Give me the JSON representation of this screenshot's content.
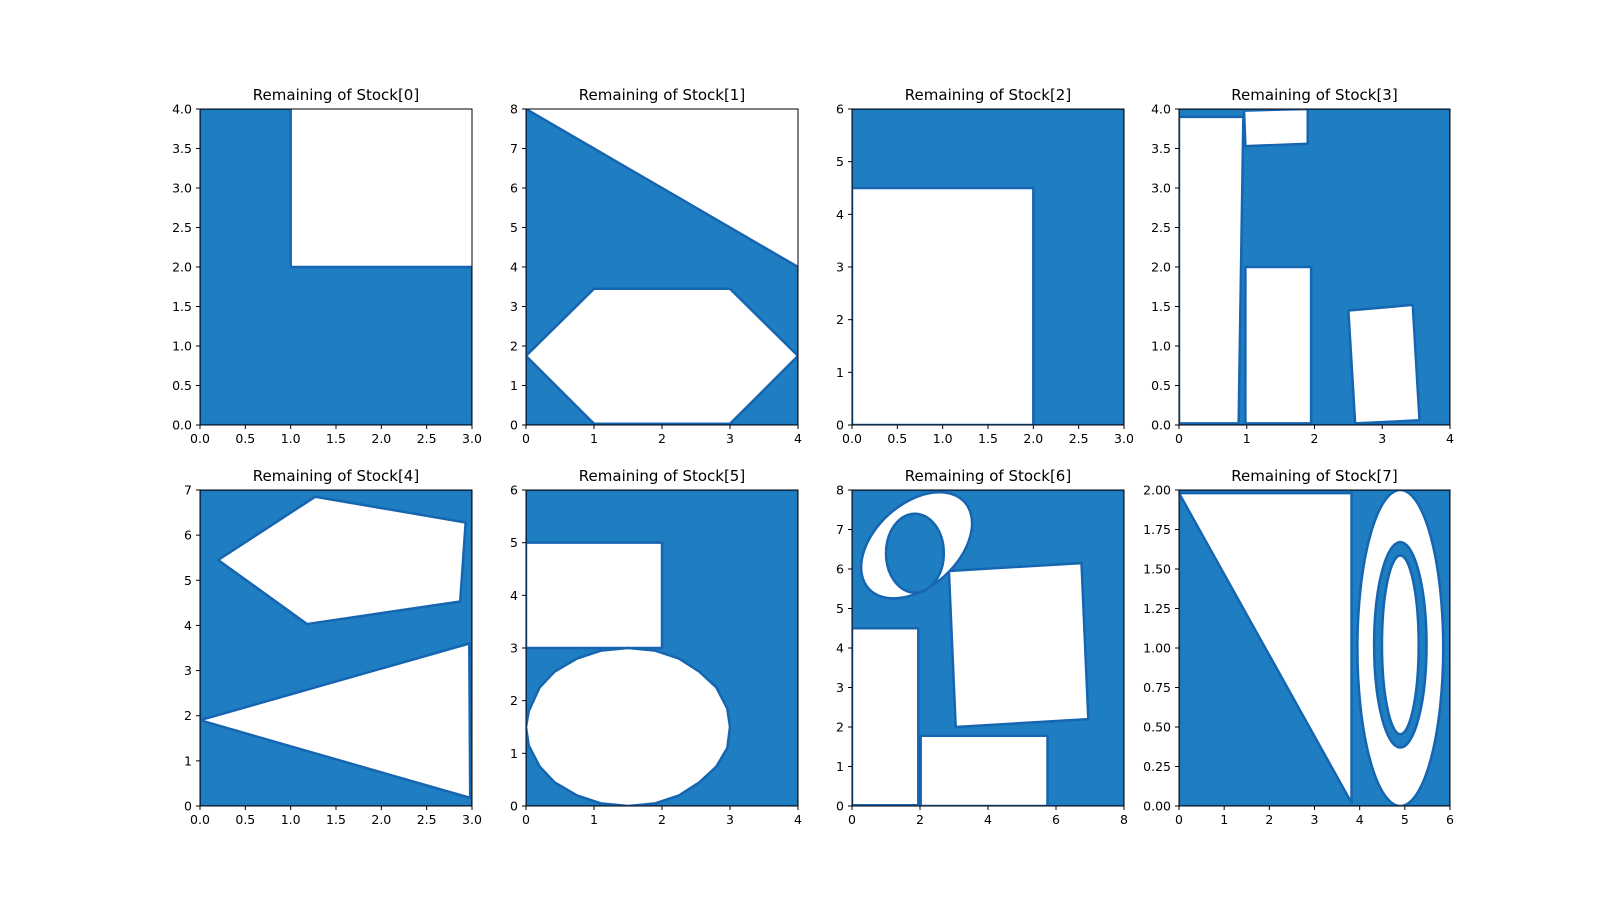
{
  "chart_data": [
    {
      "type": "area",
      "title": "Remaining of Stock[0]",
      "xlim": [
        0,
        3
      ],
      "ylim": [
        0,
        4
      ],
      "xticks": [
        "0.0",
        "0.5",
        "1.0",
        "1.5",
        "2.0",
        "2.5",
        "3.0"
      ],
      "yticks": [
        "0.0",
        "0.5",
        "1.0",
        "1.5",
        "2.0",
        "2.5",
        "3.0",
        "3.5",
        "4.0"
      ],
      "fill_color": "#1f7ec2",
      "remaining_polygons": [
        [
          [
            0,
            0
          ],
          [
            3,
            0
          ],
          [
            3,
            2
          ],
          [
            1,
            2
          ],
          [
            1,
            4
          ],
          [
            0,
            4
          ]
        ]
      ],
      "hole_polygons": []
    },
    {
      "type": "area",
      "title": "Remaining of Stock[1]",
      "xlim": [
        0,
        4
      ],
      "ylim": [
        0,
        8
      ],
      "xticks": [
        "0",
        "1",
        "2",
        "3",
        "4"
      ],
      "yticks": [
        "0",
        "1",
        "2",
        "3",
        "4",
        "5",
        "6",
        "7",
        "8"
      ],
      "fill_color": "#1f7ec2",
      "remaining_polygons": [
        [
          [
            0,
            0
          ],
          [
            4,
            0
          ],
          [
            4,
            4
          ],
          [
            0,
            8
          ]
        ]
      ],
      "hole_polygons": [
        [
          [
            0,
            1.75
          ],
          [
            1,
            3.45
          ],
          [
            3,
            3.45
          ],
          [
            4,
            1.75
          ],
          [
            3,
            0.03
          ],
          [
            1,
            0.03
          ]
        ]
      ]
    },
    {
      "type": "area",
      "title": "Remaining of Stock[2]",
      "xlim": [
        0,
        3
      ],
      "ylim": [
        0,
        6
      ],
      "xticks": [
        "0.0",
        "0.5",
        "1.0",
        "1.5",
        "2.0",
        "2.5",
        "3.0"
      ],
      "yticks": [
        "0",
        "1",
        "2",
        "3",
        "4",
        "5",
        "6"
      ],
      "fill_color": "#1f7ec2",
      "remaining_polygons": [
        [
          [
            0,
            0
          ],
          [
            3,
            0
          ],
          [
            3,
            6
          ],
          [
            0,
            6
          ]
        ]
      ],
      "hole_polygons": [
        [
          [
            0,
            0
          ],
          [
            2,
            0
          ],
          [
            2,
            4.5
          ],
          [
            0,
            4.5
          ]
        ]
      ]
    },
    {
      "type": "area",
      "title": "Remaining of Stock[3]",
      "xlim": [
        0,
        4
      ],
      "ylim": [
        0,
        4
      ],
      "xticks": [
        "0",
        "1",
        "2",
        "3",
        "4"
      ],
      "yticks": [
        "0.0",
        "0.5",
        "1.0",
        "1.5",
        "2.0",
        "2.5",
        "3.0",
        "3.5",
        "4.0"
      ],
      "fill_color": "#1f7ec2",
      "remaining_polygons": [
        [
          [
            0,
            0
          ],
          [
            4,
            0
          ],
          [
            4,
            4
          ],
          [
            0,
            4
          ]
        ]
      ],
      "hole_polygons": [
        [
          [
            0,
            0.02
          ],
          [
            0.88,
            0.02
          ],
          [
            0.95,
            3.9
          ],
          [
            0,
            3.9
          ]
        ],
        [
          [
            0.98,
            3.53
          ],
          [
            1.9,
            3.56
          ],
          [
            1.9,
            4
          ],
          [
            0.96,
            3.98
          ]
        ],
        [
          [
            0.98,
            0.02
          ],
          [
            1.95,
            0.02
          ],
          [
            1.95,
            2.0
          ],
          [
            0.98,
            2.0
          ]
        ],
        [
          [
            2.5,
            1.45
          ],
          [
            3.45,
            1.52
          ],
          [
            3.55,
            0.06
          ],
          [
            2.6,
            0.02
          ]
        ]
      ]
    },
    {
      "type": "area",
      "title": "Remaining of Stock[4]",
      "xlim": [
        0,
        3
      ],
      "ylim": [
        0,
        7
      ],
      "xticks": [
        "0.0",
        "0.5",
        "1.0",
        "1.5",
        "2.0",
        "2.5",
        "3.0"
      ],
      "yticks": [
        "0",
        "1",
        "2",
        "3",
        "4",
        "5",
        "6",
        "7"
      ],
      "fill_color": "#1f7ec2",
      "remaining_polygons": [
        [
          [
            0,
            0
          ],
          [
            3,
            0
          ],
          [
            3,
            7
          ],
          [
            0,
            7
          ]
        ]
      ],
      "hole_polygons": [
        [
          [
            0.2,
            5.45
          ],
          [
            1.27,
            6.85
          ],
          [
            2.93,
            6.28
          ],
          [
            2.87,
            4.53
          ],
          [
            1.18,
            4.03
          ]
        ],
        [
          [
            0,
            1.9
          ],
          [
            2.97,
            3.6
          ],
          [
            2.98,
            0.18
          ]
        ]
      ]
    },
    {
      "type": "area",
      "title": "Remaining of Stock[5]",
      "xlim": [
        0,
        4
      ],
      "ylim": [
        0,
        6
      ],
      "xticks": [
        "0",
        "1",
        "2",
        "3",
        "4"
      ],
      "yticks": [
        "0",
        "1",
        "2",
        "3",
        "4",
        "5",
        "6"
      ],
      "fill_color": "#1f7ec2",
      "remaining_polygons": [
        [
          [
            0,
            0
          ],
          [
            4,
            0
          ],
          [
            4,
            6
          ],
          [
            0,
            6
          ]
        ]
      ],
      "hole_polygons": [
        [
          [
            0,
            3
          ],
          [
            2,
            3
          ],
          [
            2,
            5
          ],
          [
            0,
            5
          ]
        ],
        [
          [
            0,
            1.5
          ],
          [
            0.04,
            1.8
          ],
          [
            0.2,
            2.25
          ],
          [
            0.42,
            2.55
          ],
          [
            0.75,
            2.8
          ],
          [
            1.1,
            2.95
          ],
          [
            1.5,
            3.0
          ],
          [
            1.9,
            2.95
          ],
          [
            2.25,
            2.8
          ],
          [
            2.55,
            2.55
          ],
          [
            2.8,
            2.25
          ],
          [
            2.96,
            1.85
          ],
          [
            3,
            1.5
          ],
          [
            2.96,
            1.1
          ],
          [
            2.8,
            0.75
          ],
          [
            2.55,
            0.45
          ],
          [
            2.25,
            0.2
          ],
          [
            1.9,
            0.05
          ],
          [
            1.5,
            0.0
          ],
          [
            1.1,
            0.05
          ],
          [
            0.75,
            0.2
          ],
          [
            0.42,
            0.45
          ],
          [
            0.2,
            0.75
          ],
          [
            0.04,
            1.15
          ]
        ]
      ]
    },
    {
      "type": "area",
      "title": "Remaining of Stock[6]",
      "xlim": [
        0,
        8
      ],
      "ylim": [
        0,
        8
      ],
      "xticks": [
        "0",
        "2",
        "4",
        "6",
        "8"
      ],
      "yticks": [
        "0",
        "1",
        "2",
        "3",
        "4",
        "5",
        "6",
        "7",
        "8"
      ],
      "fill_color": "#1f7ec2",
      "remaining_polygons": [
        [
          [
            0,
            0
          ],
          [
            8,
            0
          ],
          [
            8,
            8
          ],
          [
            0,
            8
          ]
        ]
      ],
      "hole_polygons": [
        [
          [
            2.85,
            5.95
          ],
          [
            6.75,
            6.15
          ],
          [
            6.95,
            2.2
          ],
          [
            3.05,
            2.0
          ]
        ],
        [
          [
            0,
            0
          ],
          [
            3.9,
            0.02
          ],
          [
            3.9,
            0
          ],
          [
            0,
            0
          ]
        ],
        [
          [
            0,
            0.02
          ],
          [
            1.95,
            0.02
          ],
          [
            1.95,
            4.5
          ],
          [
            0,
            4.5
          ]
        ],
        [
          [
            2.02,
            0
          ],
          [
            5.75,
            0
          ],
          [
            5.75,
            1.78
          ],
          [
            2.02,
            1.78
          ]
        ]
      ],
      "ellipse_holes": [
        {
          "cx": 1.9,
          "cy": 6.6,
          "rx": 1.9,
          "ry": 1.05,
          "angle_deg": 42,
          "ring_outer": true
        },
        {
          "cx": 1.85,
          "cy": 6.4,
          "rx": 0.85,
          "ry": 1.0,
          "angle_deg": 0,
          "ring_inner": true
        }
      ]
    },
    {
      "type": "area",
      "title": "Remaining of Stock[7]",
      "xlim": [
        0,
        6
      ],
      "ylim": [
        0,
        2
      ],
      "xticks": [
        "0",
        "1",
        "2",
        "3",
        "4",
        "5",
        "6"
      ],
      "yticks": [
        "0.00",
        "0.25",
        "0.50",
        "0.75",
        "1.00",
        "1.25",
        "1.50",
        "1.75",
        "2.00"
      ],
      "fill_color": "#1f7ec2",
      "remaining_polygons": [
        [
          [
            0,
            0
          ],
          [
            6,
            0
          ],
          [
            6,
            2
          ],
          [
            0,
            2
          ]
        ]
      ],
      "hole_polygons": [
        [
          [
            0,
            1.98
          ],
          [
            3.82,
            1.98
          ],
          [
            3.82,
            0.02
          ]
        ]
      ],
      "ellipse_holes": [
        {
          "cx": 4.9,
          "cy": 1.0,
          "rx": 0.95,
          "ry": 1.0,
          "angle_deg": 0,
          "ring_outer": true
        },
        {
          "cx": 4.9,
          "cy": 1.02,
          "rx": 0.58,
          "ry": 0.65,
          "angle_deg": 0,
          "ring_inner": true
        }
      ]
    }
  ]
}
